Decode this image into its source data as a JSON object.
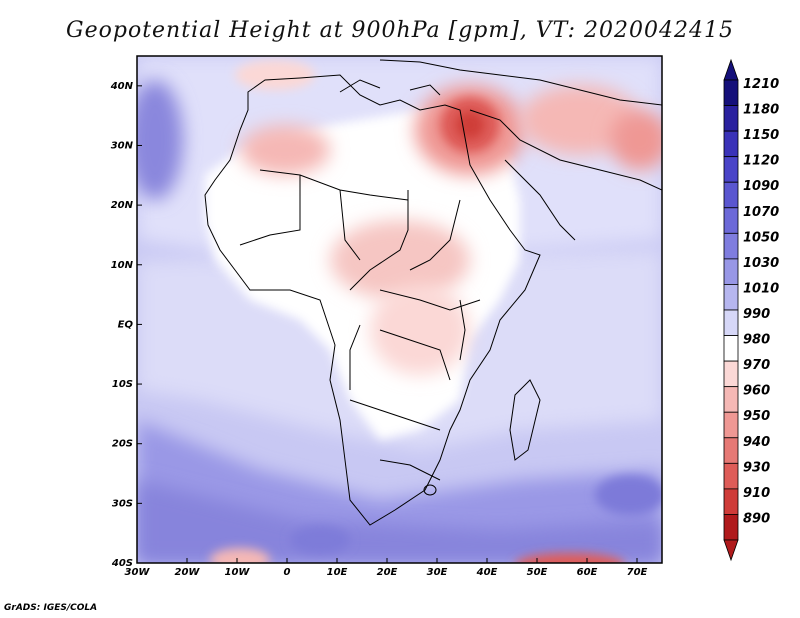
{
  "title": "Geopotential Height at 900hPa [gpm], VT: 2020042415",
  "credit": "GrADS: IGES/COLA",
  "map": {
    "lon_range": [
      -30,
      75
    ],
    "lat_range": [
      -40,
      45
    ],
    "x_ticks": [
      {
        "lon": -30,
        "label": "30W"
      },
      {
        "lon": -20,
        "label": "20W"
      },
      {
        "lon": -10,
        "label": "10W"
      },
      {
        "lon": 0,
        "label": "0"
      },
      {
        "lon": 10,
        "label": "10E"
      },
      {
        "lon": 20,
        "label": "20E"
      },
      {
        "lon": 30,
        "label": "30E"
      },
      {
        "lon": 40,
        "label": "40E"
      },
      {
        "lon": 50,
        "label": "50E"
      },
      {
        "lon": 60,
        "label": "60E"
      },
      {
        "lon": 70,
        "label": "70E"
      }
    ],
    "y_ticks": [
      {
        "lat": 40,
        "label": "40N"
      },
      {
        "lat": 30,
        "label": "30N"
      },
      {
        "lat": 20,
        "label": "20N"
      },
      {
        "lat": 10,
        "label": "10N"
      },
      {
        "lat": 0,
        "label": "EQ"
      },
      {
        "lat": -10,
        "label": "10S"
      },
      {
        "lat": -20,
        "label": "20S"
      },
      {
        "lat": -30,
        "label": "30S"
      },
      {
        "lat": -40,
        "label": "40S"
      }
    ]
  },
  "colorbar": {
    "labels": [
      "1210",
      "1180",
      "1150",
      "1120",
      "1090",
      "1070",
      "1050",
      "1030",
      "1010",
      "990",
      "980",
      "970",
      "960",
      "950",
      "940",
      "930",
      "910",
      "890"
    ],
    "colors": [
      "#15107a",
      "#2a219f",
      "#3a32b8",
      "#4a44c8",
      "#5a56d0",
      "#6c69d8",
      "#7f7ddf",
      "#9897e6",
      "#b6b6ef",
      "#d6d7f7",
      "#ffffff",
      "#fbd8d6",
      "#f5b8b5",
      "#ef9894",
      "#e67975",
      "#de5c58",
      "#cf3c39",
      "#b01a1c"
    ],
    "top_color": "#15107a",
    "bottom_color": "#b01a1c"
  }
}
